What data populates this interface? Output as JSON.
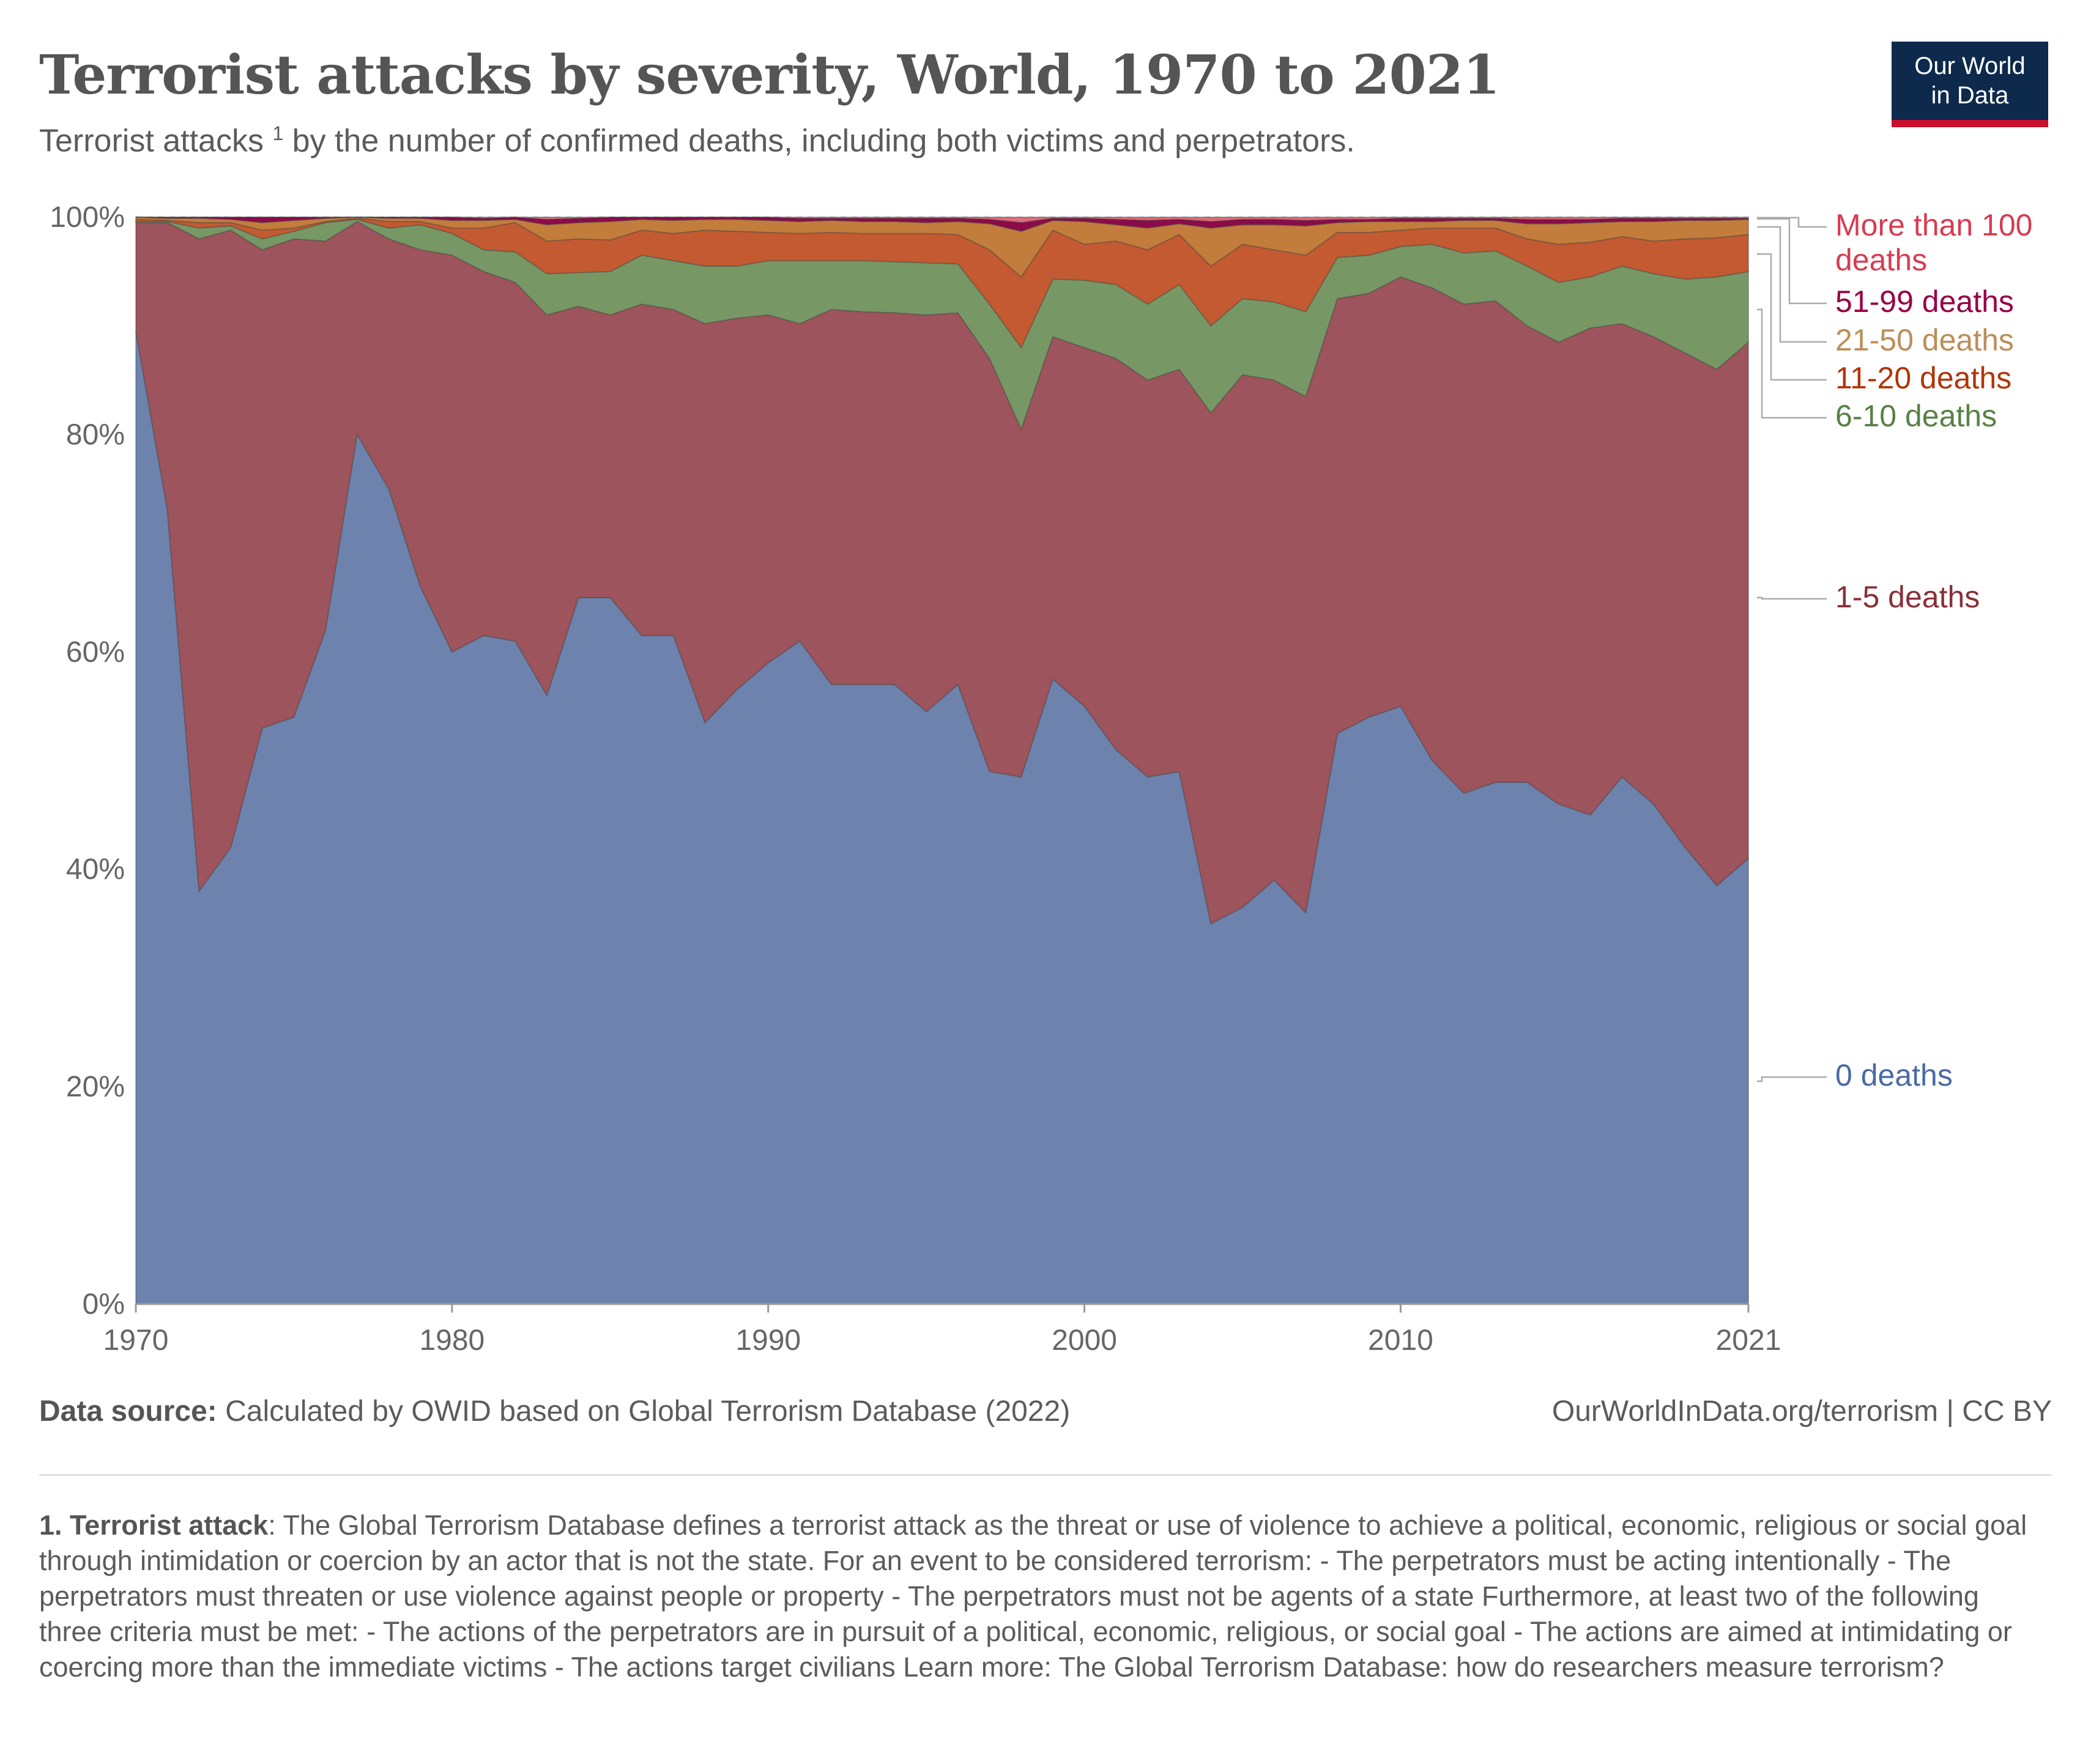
{
  "header": {
    "title": "Terrorist attacks by severity, World, 1970 to 2021",
    "subtitle_pre": "Terrorist attacks",
    "subtitle_sup": "1",
    "subtitle_post": " by the number of confirmed deaths, including both victims and perpetrators."
  },
  "logo": {
    "line1": "Our World",
    "line2": "in Data"
  },
  "footer": {
    "source_label": "Data source:",
    "source_text": " Calculated by OWID based on Global Terrorism Database (2022)",
    "url": "OurWorldInData.org/terrorism",
    "license": " | CC BY"
  },
  "note": {
    "label": "1. Terrorist attack",
    "text": ": The Global Terrorism Database defines a terrorist attack as the threat or use of violence to achieve a political, economic, religious or social goal through intimidation or coercion by an actor that is not the state. For an event to be considered terrorism: - The perpetrators must be acting intentionally - The perpetrators must threaten or use violence against people or property - The perpetrators must not be agents of a state Furthermore, at least two of the following three criteria must be met: - The actions of the perpetrators are in pursuit of a political, economic, religious, or social goal - The actions are aimed at intimidating or coercing more than the immediate victims - The actions target civilians Learn more: The Global Terrorism Database: how do researchers measure terrorism?"
  },
  "chart_data": {
    "type": "area",
    "stacked": true,
    "normalized": true,
    "x_range": [
      1970,
      2021
    ],
    "ylim": [
      0,
      100
    ],
    "y_ticks": [
      "0%",
      "20%",
      "40%",
      "60%",
      "80%",
      "100%"
    ],
    "y_tick_values": [
      0,
      20,
      40,
      60,
      80,
      100
    ],
    "x_ticks": [
      1970,
      1980,
      1990,
      2000,
      2010,
      2021
    ],
    "grid": "horizontal dashed",
    "legend_placement": "right (line labels)",
    "boundaries_note": "cumulative tops (%) of each band, bottom to top",
    "x": [
      1970,
      1971,
      1972,
      1973,
      1974,
      1975,
      1976,
      1977,
      1978,
      1979,
      1980,
      1981,
      1982,
      1983,
      1984,
      1985,
      1986,
      1987,
      1988,
      1989,
      1990,
      1991,
      1992,
      1993,
      1994,
      1995,
      1996,
      1997,
      1998,
      1999,
      2000,
      2001,
      2002,
      2003,
      2004,
      2005,
      2006,
      2007,
      2008,
      2009,
      2010,
      2011,
      2012,
      2013,
      2014,
      2015,
      2016,
      2017,
      2018,
      2019,
      2020,
      2021
    ],
    "series": [
      {
        "name": "0 deaths",
        "color": "#6d83ad",
        "cumulative_top": [
          89.5,
          73,
          38,
          42,
          53,
          54,
          62,
          80,
          75,
          66,
          60,
          61.5,
          61,
          56,
          65,
          65,
          61.5,
          61.5,
          53.5,
          56.5,
          59,
          61,
          57,
          57,
          57,
          54.5,
          57,
          49,
          48.5,
          57.5,
          55,
          51,
          48.5,
          49,
          35,
          36.5,
          39,
          36,
          52.5,
          54,
          55,
          50,
          47,
          48,
          48,
          46,
          45,
          48.5,
          46,
          42,
          38.5,
          41
        ]
      },
      {
        "name": "1-5 deaths",
        "color": "#9e545c",
        "cumulative_top": [
          99.5,
          99.5,
          98,
          98.8,
          97,
          98,
          97.8,
          99.6,
          98,
          97,
          96.5,
          95,
          94,
          91,
          91.8,
          91,
          92,
          91.5,
          90.2,
          90.7,
          91,
          90.2,
          91.5,
          91.3,
          91.2,
          91,
          91.2,
          87,
          80.5,
          89,
          88,
          87,
          85,
          86,
          82,
          85.5,
          85,
          83.5,
          92.5,
          93,
          94.5,
          93.5,
          92,
          92.3,
          90,
          88.5,
          89.8,
          90.2,
          89,
          87.5,
          86,
          88.5
        ]
      },
      {
        "name": "6-10 deaths",
        "color": "#779865",
        "cumulative_top": [
          99.6,
          99.6,
          99,
          99.2,
          98,
          98.7,
          99.5,
          99.8,
          99,
          99.3,
          98.5,
          97,
          96.8,
          94.8,
          94.9,
          95,
          96.5,
          96,
          95.5,
          95.5,
          96,
          96,
          96,
          96,
          95.9,
          95.8,
          95.7,
          92,
          88,
          94.3,
          94.2,
          93.8,
          92,
          93.8,
          90,
          92.5,
          92.2,
          91.3,
          96.3,
          96.5,
          97.3,
          97.5,
          96.7,
          96.9,
          95.5,
          94,
          94.5,
          95.5,
          94.8,
          94.3,
          94.5,
          95
        ]
      },
      {
        "name": "11-20 deaths",
        "color": "#c45a32",
        "cumulative_top": [
          99.8,
          99.7,
          99.5,
          99.5,
          98.8,
          99,
          99.6,
          99.9,
          99.6,
          99.6,
          99,
          99,
          99.5,
          97.8,
          98,
          97.9,
          98.8,
          98.5,
          98.8,
          98.7,
          98.6,
          98.5,
          98.6,
          98.5,
          98.5,
          98.5,
          98.4,
          97,
          94.5,
          98.8,
          97.5,
          97.8,
          97,
          98.4,
          95.5,
          97.5,
          97,
          96.5,
          98.6,
          98.6,
          98.8,
          99,
          99,
          99,
          98,
          97.5,
          97.7,
          98.2,
          97.8,
          98,
          98.1,
          98.4
        ]
      },
      {
        "name": "21-50 deaths",
        "color": "#c27d3c",
        "cumulative_top": [
          100,
          99.9,
          99.9,
          99.8,
          99.5,
          99.7,
          99.9,
          100,
          99.9,
          99.9,
          99.7,
          99.7,
          99.8,
          99.3,
          99.5,
          99.6,
          99.8,
          99.7,
          99.8,
          99.8,
          99.7,
          99.6,
          99.7,
          99.6,
          99.6,
          99.5,
          99.6,
          99.4,
          98.7,
          99.7,
          99.6,
          99.3,
          99,
          99.4,
          99,
          99.3,
          99.3,
          99.2,
          99.5,
          99.6,
          99.6,
          99.6,
          99.7,
          99.7,
          99.4,
          99.4,
          99.5,
          99.6,
          99.6,
          99.7,
          99.7,
          99.8
        ]
      },
      {
        "name": "51-99 deaths",
        "color": "#8c0a4a",
        "cumulative_top": [
          100,
          100,
          100,
          100,
          100,
          100,
          100,
          100,
          100,
          100,
          100,
          99.9,
          100,
          99.8,
          99.9,
          100,
          100,
          100,
          100,
          100,
          100,
          99.9,
          99.9,
          99.9,
          99.9,
          99.9,
          99.9,
          99.8,
          99.5,
          99.9,
          99.9,
          99.8,
          99.7,
          99.8,
          99.6,
          99.8,
          99.8,
          99.7,
          99.8,
          99.8,
          99.9,
          99.9,
          99.9,
          99.9,
          99.8,
          99.8,
          99.8,
          99.9,
          99.9,
          99.9,
          99.9,
          99.9
        ]
      },
      {
        "name": "More than 100 deaths",
        "label_line1": "More than 100",
        "label_line2": "deaths",
        "color": "#df6b78",
        "cumulative_top": [
          100,
          100,
          100,
          100,
          100,
          100,
          100,
          100,
          100,
          100,
          100,
          100,
          100,
          100,
          100,
          100,
          100,
          100,
          100,
          100,
          100,
          100,
          100,
          100,
          100,
          100,
          100,
          100,
          100,
          100,
          100,
          100,
          100,
          100,
          100,
          100,
          100,
          100,
          100,
          100,
          100,
          100,
          100,
          100,
          100,
          100,
          100,
          100,
          100,
          100,
          100,
          100
        ]
      }
    ],
    "label_colors": {
      "0 deaths": "#4b6aa3",
      "1-5 deaths": "#883039",
      "6-10 deaths": "#578145",
      "11-20 deaths": "#b13507",
      "21-50 deaths": "#bc8e5a",
      "51-99 deaths": "#970046",
      "More than 100 deaths": "#d73c50"
    }
  }
}
